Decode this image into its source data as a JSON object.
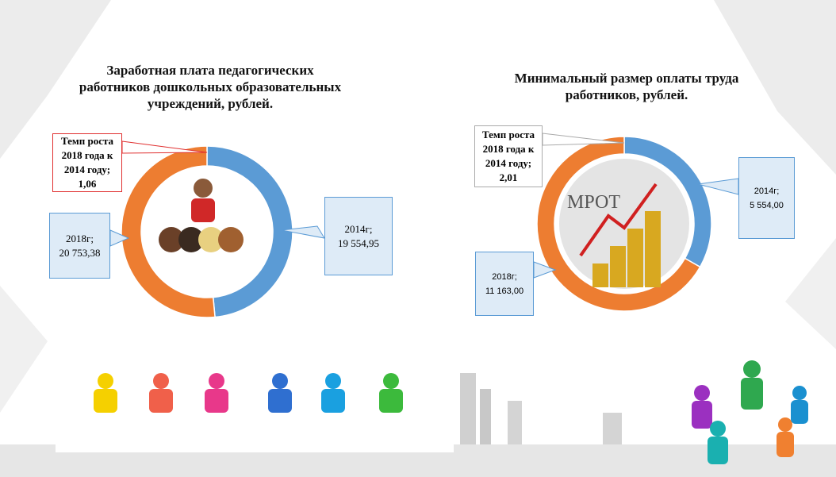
{
  "chart_data": [
    {
      "type": "donut",
      "title": "Заработная плата педагогических работников дошкольных образовательных учреждений, рублей.",
      "categories": [
        "2014г;",
        "2018г;"
      ],
      "values": [
        19554.95,
        20753.38
      ],
      "value_labels": [
        "19 554,95",
        "20 753,38"
      ],
      "colors": [
        "#5b9bd5",
        "#ed7d31"
      ],
      "annotation": "Темп роста 2018 года к 2014 году; 1,06"
    },
    {
      "type": "donut",
      "title": "Минимальный размер оплаты труда работников, рублей.",
      "categories": [
        "2014г;",
        "2018г;"
      ],
      "values": [
        5554.0,
        11163.0
      ],
      "value_labels": [
        "5 554,00",
        "11 163,00"
      ],
      "colors": [
        "#5b9bd5",
        "#ed7d31"
      ],
      "annotation": "Темп роста 2018 года к 2014 году; 2,01",
      "center_text": "МРОТ"
    }
  ]
}
